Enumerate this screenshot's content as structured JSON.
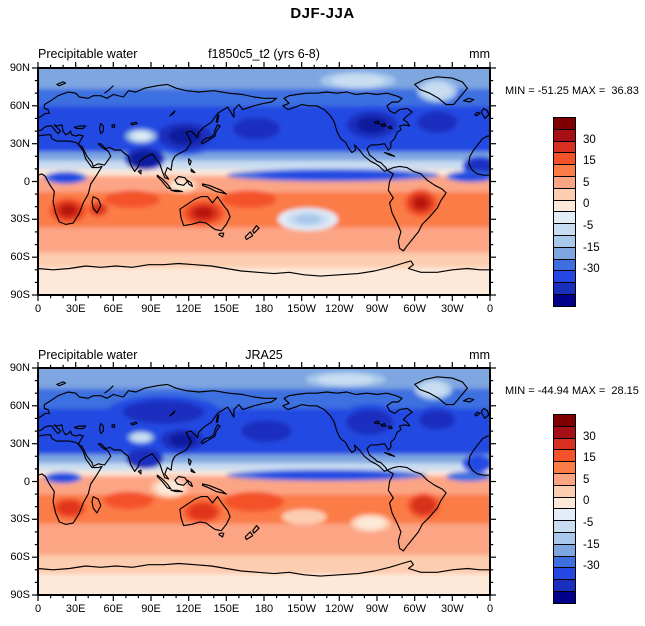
{
  "chart_data": {
    "type": "heatmap",
    "title": "DJF-JJA",
    "variable": "Precipitable water",
    "units": "mm",
    "colorbar": {
      "colors": [
        "#7f0000",
        "#a50f15",
        "#d7301f",
        "#f4532a",
        "#fb7c47",
        "#fca585",
        "#fdcdb0",
        "#fde9d9",
        "#e2edf8",
        "#c9ddf2",
        "#a8c8ec",
        "#7ea6e0",
        "#3d6fe0",
        "#2349e2",
        "#1b2fbf",
        "#00008b"
      ],
      "tick_labels": [
        "30",
        "15",
        "5",
        "0",
        "-5",
        "-15",
        "-30"
      ],
      "tick_after_box": [
        2,
        4,
        6,
        8,
        10,
        12,
        14
      ]
    },
    "axes": {
      "x_tick_labels": [
        "0",
        "30E",
        "60E",
        "90E",
        "120E",
        "150E",
        "180",
        "150W",
        "120W",
        "90W",
        "60W",
        "30W",
        "0"
      ],
      "x_tick_lons": [
        0,
        30,
        60,
        90,
        120,
        150,
        180,
        210,
        240,
        270,
        300,
        330,
        360
      ],
      "y_tick_labels": [
        "90N",
        "60N",
        "30N",
        "0",
        "30S",
        "60S",
        "90S"
      ],
      "y_tick_lats": [
        90,
        60,
        30,
        0,
        -30,
        -60,
        -90
      ],
      "minor_step_deg": 10,
      "lon_range": [
        0,
        360
      ],
      "lat_range": [
        90,
        -90
      ]
    },
    "panels": [
      {
        "header": {
          "left": "Precipitable water",
          "center": "f1850c5_t2 (yrs 6-8)",
          "right": "mm"
        },
        "stats": {
          "min": -51.25,
          "max": 36.83,
          "text": "MIN = -51.25 MAX =  36.83"
        },
        "field": {
          "bands": [
            [
              90,
              72,
              "#7ea6e0"
            ],
            [
              72,
              58,
              "#3d6fe0"
            ],
            [
              58,
              22,
              "#2349e2"
            ],
            [
              22,
              15,
              "#7ea6e0"
            ],
            [
              15,
              8,
              "#c9ddf2"
            ],
            [
              8,
              3,
              "#fde9d9"
            ],
            [
              3,
              -10,
              "#fca585"
            ],
            [
              -10,
              -38,
              "#fb7c47"
            ],
            [
              -38,
              -58,
              "#fca585"
            ],
            [
              -58,
              -70,
              "#fdcdb0"
            ],
            [
              -70,
              -90,
              "#fde9d9"
            ]
          ],
          "blobs": [
            [
              117,
              36,
              30,
              15,
              [
                "#2349e2",
                "#1b2fbf",
                "#101d9c"
              ]
            ],
            [
              85,
              18,
              16,
              9,
              [
                "#1b2fbf",
                "#101d9c"
              ]
            ],
            [
              174,
              42,
              26,
              12,
              [
                "#2349e2",
                "#1b2fbf"
              ]
            ],
            [
              266,
              45,
              28,
              15,
              [
                "#2349e2",
                "#1b2fbf",
                "#101d9c"
              ]
            ],
            [
              318,
              47,
              22,
              12,
              [
                "#2349e2",
                "#1b2fbf"
              ]
            ],
            [
              352,
              12,
              14,
              8,
              [
                "#2349e2",
                "#1b2fbf"
              ]
            ],
            [
              82,
              36,
              13,
              6,
              [
                "#7ea6e0",
                "#c9ddf2",
                "#e2edf8"
              ]
            ],
            [
              255,
              80,
              30,
              7,
              [
                "#a8c8ec",
                "#c9ddf2"
              ]
            ],
            [
              318,
              72,
              16,
              9,
              [
                "#a8c8ec",
                "#c9ddf2"
              ]
            ],
            [
              235,
              5,
              85,
              5,
              [
                "#3d6fe0",
                "#2349e2"
              ]
            ],
            [
              345,
              4,
              20,
              4.5,
              [
                "#3d6fe0",
                "#2349e2"
              ]
            ],
            [
              22,
              3,
              17,
              5,
              [
                "#3d6fe0",
                "#2349e2"
              ]
            ],
            [
              115,
              -3,
              12,
              6,
              [
                "#fdcdb0",
                "#fde9d9"
              ]
            ],
            [
              24,
              -23,
              15,
              10,
              [
                "#f4532a",
                "#d7301f",
                "#b8160b"
              ]
            ],
            [
              48,
              -22,
              8,
              6,
              [
                "#f4532a",
                "#d7301f"
              ]
            ],
            [
              132,
              -25,
              17,
              10,
              [
                "#f4532a",
                "#d7301f",
                "#b8160b"
              ]
            ],
            [
              305,
              -17,
              13,
              11,
              [
                "#f4532a",
                "#d7301f",
                "#b8160b"
              ]
            ],
            [
              75,
              -14,
              22,
              7,
              [
                "#f4532a"
              ]
            ],
            [
              168,
              -14,
              22,
              7,
              [
                "#f4532a"
              ]
            ],
            [
              215,
              -30,
              24,
              9,
              [
                "#e2edf8",
                "#c9ddf2",
                "#a8c8ec"
              ]
            ]
          ]
        }
      },
      {
        "header": {
          "left": "Precipitable water",
          "center": "JRA25",
          "right": "mm"
        },
        "stats": {
          "min": -44.94,
          "max": 28.15,
          "text": "MIN = -44.94 MAX =  28.15"
        },
        "field": {
          "bands": [
            [
              90,
              72,
              "#7ea6e0"
            ],
            [
              72,
              56,
              "#3d6fe0"
            ],
            [
              56,
              20,
              "#2349e2"
            ],
            [
              20,
              13,
              "#7ea6e0"
            ],
            [
              13,
              7,
              "#c9ddf2"
            ],
            [
              7,
              3,
              "#fde9d9"
            ],
            [
              3,
              -12,
              "#fca585"
            ],
            [
              -12,
              -35,
              "#fb7c47"
            ],
            [
              -35,
              -60,
              "#fca585"
            ],
            [
              -60,
              -75,
              "#fdcdb0"
            ],
            [
              -75,
              -90,
              "#fde9d9"
            ]
          ],
          "blobs": [
            [
              100,
              55,
              45,
              13,
              [
                "#2349e2",
                "#1b2fbf"
              ]
            ],
            [
              115,
              33,
              24,
              12,
              [
                "#2349e2",
                "#1b2fbf",
                "#101d9c"
              ]
            ],
            [
              85,
              18,
              15,
              8,
              [
                "#1b2fbf"
              ]
            ],
            [
              182,
              40,
              28,
              12,
              [
                "#2349e2",
                "#1b2fbf"
              ]
            ],
            [
              264,
              47,
              26,
              14,
              [
                "#2349e2",
                "#1b2fbf"
              ]
            ],
            [
              318,
              49,
              20,
              11,
              [
                "#2349e2",
                "#1b2fbf"
              ]
            ],
            [
              350,
              14,
              12,
              7,
              [
                "#2349e2"
              ]
            ],
            [
              82,
              35,
              11,
              5,
              [
                "#7ea6e0",
                "#c9ddf2"
              ]
            ],
            [
              245,
              81,
              32,
              6,
              [
                "#a8c8ec",
                "#c9ddf2"
              ]
            ],
            [
              315,
              73,
              15,
              8,
              [
                "#a8c8ec",
                "#c9ddf2"
              ]
            ],
            [
              230,
              5,
              80,
              4.5,
              [
                "#3d6fe0",
                "#2349e2"
              ]
            ],
            [
              343,
              4,
              18,
              4,
              [
                "#3d6fe0"
              ]
            ],
            [
              20,
              3,
              15,
              4.5,
              [
                "#3d6fe0",
                "#2349e2"
              ]
            ],
            [
              105,
              -5,
              15,
              8,
              [
                "#fdcdb0",
                "#fde9d9"
              ]
            ],
            [
              25,
              -21,
              13,
              8,
              [
                "#f4532a",
                "#e0351c"
              ]
            ],
            [
              131,
              -24,
              15,
              9,
              [
                "#f4532a",
                "#e0351c"
              ]
            ],
            [
              307,
              -19,
              13,
              10,
              [
                "#f4532a",
                "#d7301f"
              ]
            ],
            [
              72,
              -15,
              20,
              7,
              [
                "#f4532a"
              ]
            ],
            [
              172,
              -16,
              24,
              8,
              [
                "#f4532a"
              ]
            ],
            [
              265,
              -33,
              16,
              7,
              [
                "#fdcdb0",
                "#fde9d9"
              ]
            ],
            [
              212,
              -28,
              18,
              6,
              [
                "#fdcdb0"
              ]
            ]
          ]
        }
      }
    ]
  }
}
